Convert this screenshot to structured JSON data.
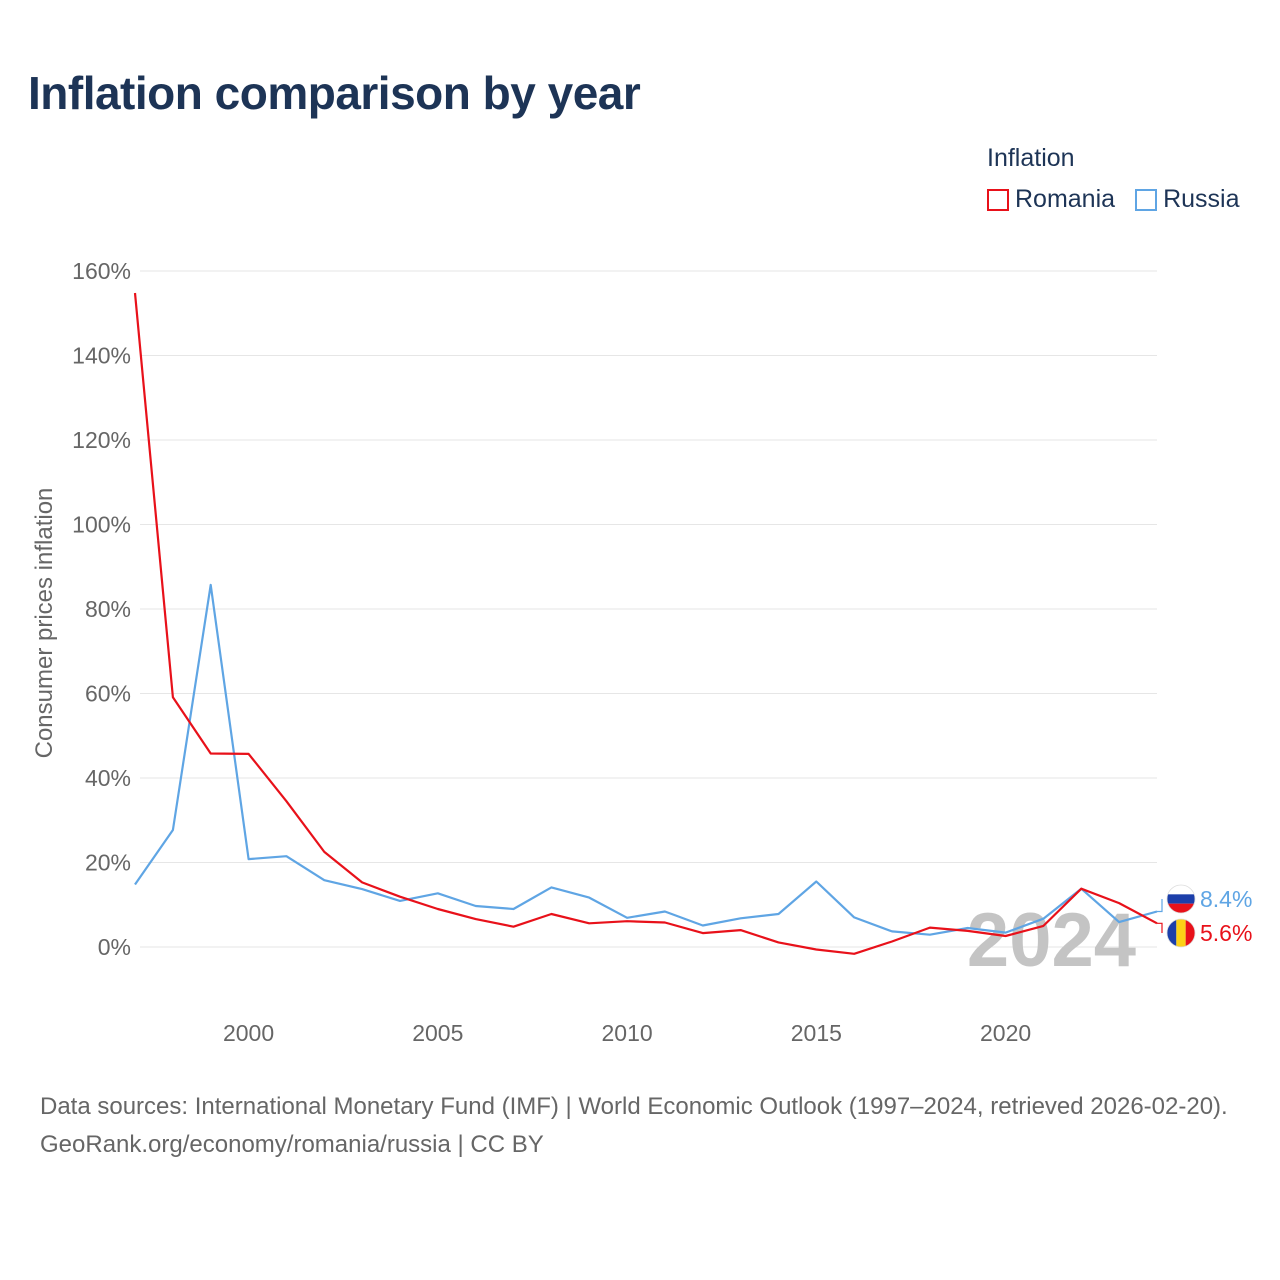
{
  "title": "Inflation comparison by year",
  "legend": {
    "title": "Inflation",
    "items": [
      {
        "label": "Romania",
        "color": "#e8111a"
      },
      {
        "label": "Russia",
        "color": "#5fa5e4"
      }
    ]
  },
  "chart_data": {
    "type": "line",
    "title": "Inflation comparison by year",
    "ylabel": "Consumer prices inflation",
    "xlabel": "",
    "ylim": [
      -15,
      160
    ],
    "xlim": [
      1997,
      2024
    ],
    "yticks": [
      0,
      20,
      40,
      60,
      80,
      100,
      120,
      140,
      160
    ],
    "ytick_labels": [
      "0%",
      "20%",
      "40%",
      "60%",
      "80%",
      "100%",
      "120%",
      "140%",
      "160%"
    ],
    "xticks": [
      2000,
      2005,
      2010,
      2015,
      2020
    ],
    "xtick_labels": [
      "2000",
      "2005",
      "2010",
      "2015",
      "2020"
    ],
    "grid": true,
    "x": [
      1997,
      1998,
      1999,
      2000,
      2001,
      2002,
      2003,
      2004,
      2005,
      2006,
      2007,
      2008,
      2009,
      2010,
      2011,
      2012,
      2013,
      2014,
      2015,
      2016,
      2017,
      2018,
      2019,
      2020,
      2021,
      2022,
      2023,
      2024
    ],
    "series": [
      {
        "name": "Romania",
        "color": "#e8111a",
        "values": [
          154.8,
          59.1,
          45.8,
          45.7,
          34.5,
          22.5,
          15.3,
          11.9,
          9.0,
          6.6,
          4.8,
          7.8,
          5.6,
          6.1,
          5.8,
          3.3,
          4.0,
          1.1,
          -0.6,
          -1.6,
          1.3,
          4.6,
          3.8,
          2.6,
          5.0,
          13.8,
          10.4,
          5.6
        ]
      },
      {
        "name": "Russia",
        "color": "#5fa5e4",
        "values": [
          14.8,
          27.7,
          85.7,
          20.8,
          21.5,
          15.8,
          13.7,
          10.9,
          12.7,
          9.7,
          9.0,
          14.1,
          11.7,
          6.9,
          8.4,
          5.1,
          6.8,
          7.8,
          15.5,
          7.0,
          3.7,
          2.9,
          4.5,
          3.4,
          6.7,
          13.8,
          5.9,
          8.4
        ]
      }
    ],
    "end_labels": [
      {
        "series": "Russia",
        "text": "8.4%"
      },
      {
        "series": "Romania",
        "text": "5.6%"
      }
    ],
    "year_watermark": "2024"
  },
  "footer": {
    "sources": "Data sources: International Monetary Fund (IMF) | World Economic Outlook (1997–2024, retrieved 2026-02-20).",
    "credit": "GeoRank.org/economy/romania/russia | CC BY"
  }
}
